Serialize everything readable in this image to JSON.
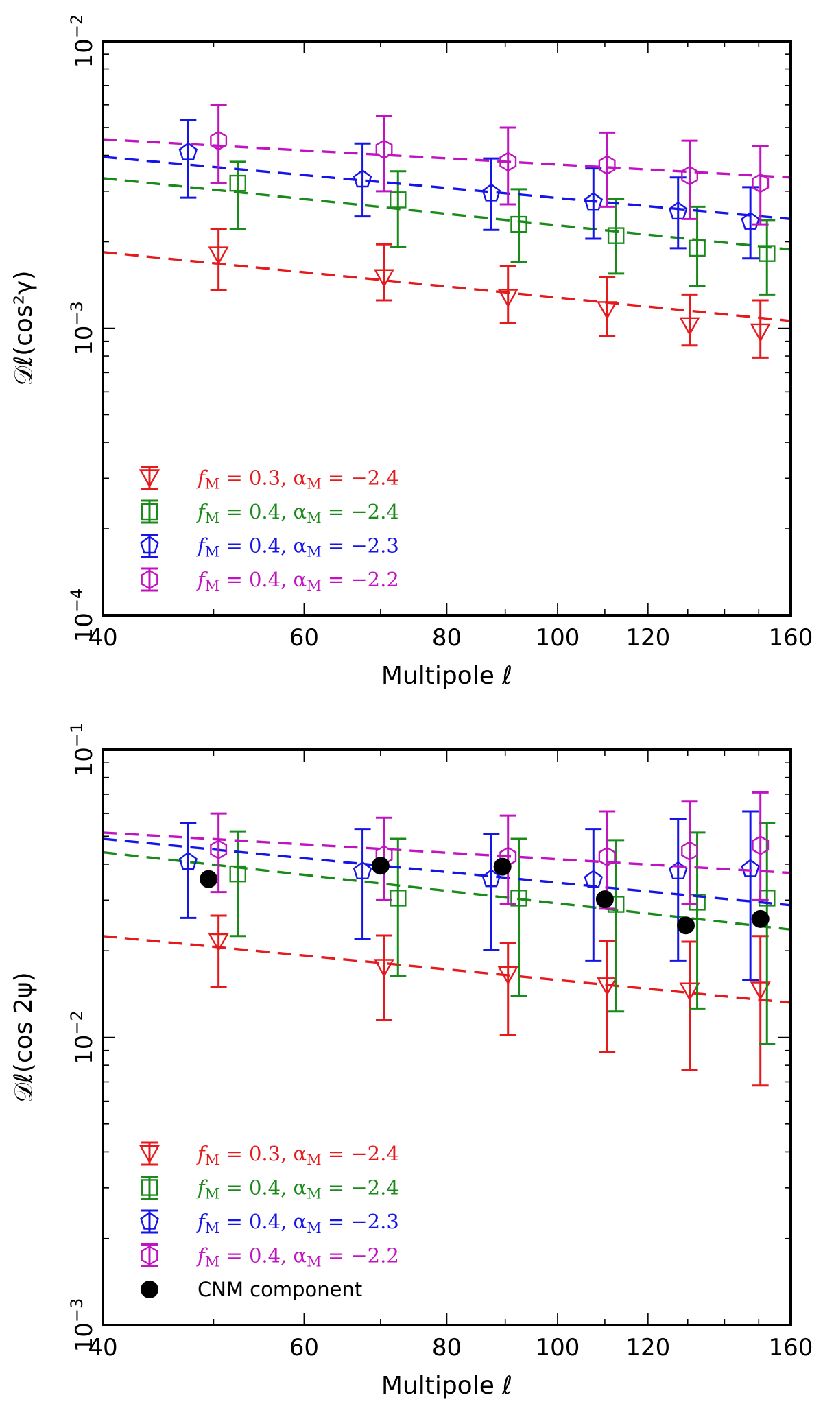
{
  "chart_data": [
    {
      "type": "scatter",
      "xlabel": "Multipole ℓ",
      "ylabel": "𝒟ℓ(cos²γ)",
      "xscale": "log",
      "yscale": "log",
      "xlim": [
        40,
        160
      ],
      "ylim": [
        0.0001,
        0.01
      ],
      "xticks": [
        "40",
        "60",
        "80",
        "100",
        "120",
        "160"
      ],
      "yticks": [
        {
          "base": "10",
          "exp": "−4"
        },
        {
          "base": "10",
          "exp": "−3"
        },
        {
          "base": "10",
          "exp": "−2"
        }
      ],
      "legend_position": "lower-left",
      "series": [
        {
          "name": "fM = 0.3, αM = −2.4",
          "label_parts": [
            "f",
            "M",
            " = 0.3, α",
            "M",
            " = −2.4"
          ],
          "color": "#e41a1c",
          "marker": "triangle-down",
          "x": [
            50.5,
            70.5,
            90.5,
            110.5,
            130.5,
            150.5
          ],
          "y": [
            0.0018,
            0.0015,
            0.00128,
            0.00116,
            0.00102,
            0.00097
          ],
          "yerr_low": [
            0.00136,
            0.00125,
            0.00104,
            0.00094,
            0.00087,
            0.00079
          ],
          "yerr_high": [
            0.00222,
            0.00196,
            0.00165,
            0.00151,
            0.00131,
            0.00125
          ],
          "fit": [
            0.00184,
            0.00106
          ]
        },
        {
          "name": "fM = 0.4, αM = −2.4",
          "label_parts": [
            "f",
            "M",
            " = 0.4, α",
            "M",
            " = −2.4"
          ],
          "color": "#1a8a1a",
          "marker": "square",
          "x": [
            52.5,
            72.5,
            92.5,
            112.5,
            132.5,
            152.5
          ],
          "y": [
            0.0032,
            0.0028,
            0.0023,
            0.0021,
            0.0019,
            0.00182
          ],
          "yerr_low": [
            0.00222,
            0.00192,
            0.0017,
            0.00155,
            0.0014,
            0.00131
          ],
          "yerr_high": [
            0.0038,
            0.00352,
            0.00305,
            0.00282,
            0.00265,
            0.00238
          ],
          "fit": [
            0.00333,
            0.00188
          ]
        },
        {
          "name": "fM = 0.4, αM = −2.3",
          "label_parts": [
            "f",
            "M",
            " = 0.4, α",
            "M",
            " = −2.3"
          ],
          "color": "#1515e8",
          "marker": "pentagon",
          "x": [
            47.5,
            67.5,
            87.5,
            107.5,
            127.5,
            147.5
          ],
          "y": [
            0.0041,
            0.0033,
            0.00295,
            0.00275,
            0.00255,
            0.00235
          ],
          "yerr_low": [
            0.00285,
            0.00245,
            0.0022,
            0.00205,
            0.0019,
            0.00175
          ],
          "yerr_high": [
            0.0053,
            0.0044,
            0.0039,
            0.0036,
            0.00335,
            0.0031
          ],
          "fit": [
            0.00395,
            0.0024
          ]
        },
        {
          "name": "fM = 0.4, αM = −2.2",
          "label_parts": [
            "f",
            "M",
            " = 0.4, α",
            "M",
            " = −2.2"
          ],
          "color": "#c114c1",
          "marker": "hexagon",
          "x": [
            50.5,
            70.5,
            90.5,
            110.5,
            130.5,
            150.5
          ],
          "y": [
            0.0045,
            0.0042,
            0.0038,
            0.0037,
            0.0034,
            0.0032
          ],
          "yerr_low": [
            0.0032,
            0.003,
            0.0027,
            0.00265,
            0.0024,
            0.0023
          ],
          "yerr_high": [
            0.006,
            0.0055,
            0.005,
            0.0048,
            0.0045,
            0.0043
          ],
          "fit": [
            0.00455,
            0.00335
          ]
        }
      ]
    },
    {
      "type": "scatter",
      "xlabel": "Multipole ℓ",
      "ylabel": "𝒟ℓ(cos 2ψ)",
      "xscale": "log",
      "yscale": "log",
      "xlim": [
        40,
        160
      ],
      "ylim": [
        0.001,
        0.1
      ],
      "xticks": [
        "40",
        "60",
        "80",
        "100",
        "120",
        "160"
      ],
      "yticks": [
        {
          "base": "10",
          "exp": "−3"
        },
        {
          "base": "10",
          "exp": "−2"
        },
        {
          "base": "10",
          "exp": "−1"
        }
      ],
      "legend_position": "lower-left",
      "series": [
        {
          "name": "fM = 0.3, αM = −2.4",
          "label_parts": [
            "f",
            "M",
            " = 0.3, α",
            "M",
            " = −2.4"
          ],
          "color": "#e41a1c",
          "marker": "triangle-down",
          "x": [
            50.5,
            70.5,
            90.5,
            110.5,
            130.5,
            150.5
          ],
          "y": [
            0.0215,
            0.0175,
            0.0165,
            0.0151,
            0.0145,
            0.0146
          ],
          "yerr_low": [
            0.015,
            0.0115,
            0.0102,
            0.0089,
            0.0077,
            0.0068
          ],
          "yerr_high": [
            0.0265,
            0.0226,
            0.0213,
            0.0216,
            0.0215,
            0.0225
          ],
          "fit": [
            0.0225,
            0.0132
          ]
        },
        {
          "name": "fM = 0.4, αM = −2.4",
          "label_parts": [
            "f",
            "M",
            " = 0.4, α",
            "M",
            " = −2.4"
          ],
          "color": "#1a8a1a",
          "marker": "square",
          "x": [
            52.5,
            72.5,
            92.5,
            112.5,
            132.5,
            152.5
          ],
          "y": [
            0.037,
            0.0305,
            0.0305,
            0.029,
            0.0295,
            0.0305
          ],
          "yerr_low": [
            0.0225,
            0.0163,
            0.0139,
            0.0123,
            0.0126,
            0.0095
          ],
          "yerr_high": [
            0.052,
            0.049,
            0.049,
            0.0485,
            0.0515,
            0.0555
          ],
          "fit": [
            0.044,
            0.0237
          ]
        },
        {
          "name": "fM = 0.4, αM = −2.3",
          "label_parts": [
            "f",
            "M",
            " = 0.4, α",
            "M",
            " = −2.3"
          ],
          "color": "#1515e8",
          "marker": "pentagon",
          "x": [
            47.5,
            67.5,
            87.5,
            107.5,
            127.5,
            147.5
          ],
          "y": [
            0.0408,
            0.0378,
            0.0355,
            0.0353,
            0.0378,
            0.0385
          ],
          "yerr_low": [
            0.026,
            0.022,
            0.0201,
            0.0185,
            0.0185,
            0.0158
          ],
          "yerr_high": [
            0.0555,
            0.053,
            0.051,
            0.053,
            0.0575,
            0.061
          ],
          "fit": [
            0.049,
            0.0288
          ]
        },
        {
          "name": "fM = 0.4, αM = −2.2",
          "label_parts": [
            "f",
            "M",
            " = 0.4, α",
            "M",
            " = −2.2"
          ],
          "color": "#c114c1",
          "marker": "hexagon",
          "x": [
            50.5,
            70.5,
            90.5,
            110.5,
            130.5,
            150.5
          ],
          "y": [
            0.045,
            0.043,
            0.0425,
            0.0425,
            0.0445,
            0.0465
          ],
          "yerr_low": [
            0.032,
            0.03,
            0.029,
            0.028,
            0.029,
            0.03
          ],
          "yerr_high": [
            0.06,
            0.058,
            0.059,
            0.061,
            0.066,
            0.071
          ],
          "fit": [
            0.0515,
            0.0373
          ]
        },
        {
          "name": "CNM component",
          "label_parts": [
            "CNM component"
          ],
          "color": "#000000",
          "marker": "filled-circle",
          "x": [
            49.5,
            70.0,
            89.5,
            110.0,
            129.5,
            150.5
          ],
          "y": [
            0.0355,
            0.0395,
            0.0392,
            0.0302,
            0.0245,
            0.0258
          ]
        }
      ]
    }
  ]
}
